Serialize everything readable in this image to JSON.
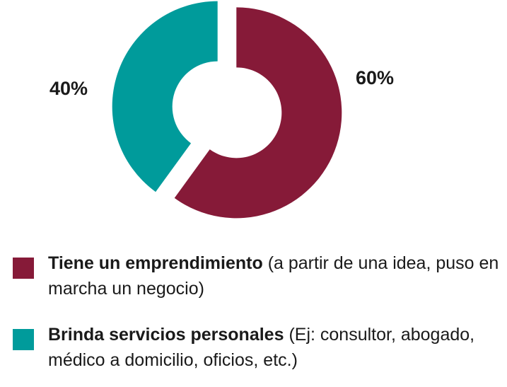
{
  "chart_data": {
    "type": "pie",
    "categories": [
      "Tiene un emprendimiento",
      "Brinda servicios personales"
    ],
    "descriptions": [
      "(a partir de una idea, puso en marcha un negocio)",
      "(Ej: consultor, abogado, médico a domicilio, oficios, etc.)"
    ],
    "values": [
      60,
      40
    ],
    "value_labels": [
      "60%",
      "40%"
    ],
    "colors": [
      "#861a38",
      "#009b9b"
    ],
    "donut": true
  }
}
